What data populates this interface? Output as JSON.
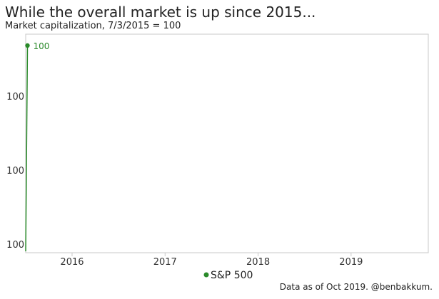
{
  "chart_data": {
    "type": "line",
    "title": "While the overall market is up since 2015...",
    "subtitle": "Market capitalization, 7/3/2015 = 100",
    "xlabel": "",
    "ylabel": "",
    "x_ticks": [
      "2016",
      "2017",
      "2018",
      "2019"
    ],
    "y_ticks": [
      "100",
      "100",
      "100"
    ],
    "series": [
      {
        "name": "S&P 500",
        "color": "#2a8a2a",
        "points": [
          {
            "x": "2015-07-03",
            "y": 100
          },
          {
            "x": "2015-07-10",
            "y": 100
          }
        ],
        "end_label": "100"
      }
    ],
    "legend": {
      "position": "bottom",
      "marker": "dot"
    },
    "grid": false
  },
  "source": "Data as of Oct 2019. @benbakkum."
}
